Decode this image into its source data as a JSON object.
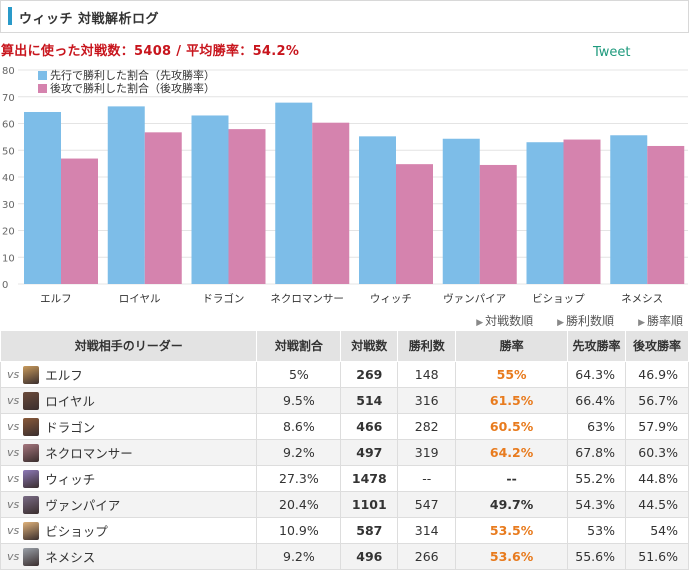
{
  "header": {
    "title": "ウィッチ 対戦解析ログ"
  },
  "summary": {
    "text": "算出に使った対戦数：5408 / 平均勝率：54.2%"
  },
  "tweet_label": "Tweet",
  "chart_data": {
    "type": "bar",
    "categories": [
      "エルフ",
      "ロイヤル",
      "ドラゴン",
      "ネクロマンサー",
      "ウィッチ",
      "ヴァンパイア",
      "ビショップ",
      "ネメシス"
    ],
    "series": [
      {
        "name": "先行で勝利した割合（先攻勝率）",
        "color": "#7dbde8",
        "values": [
          64.3,
          66.4,
          63,
          67.8,
          55.2,
          54.3,
          53,
          55.6
        ]
      },
      {
        "name": "後攻で勝利した割合（後攻勝率）",
        "color": "#d583ae",
        "values": [
          46.9,
          56.7,
          57.9,
          60.3,
          44.8,
          44.5,
          54,
          51.6
        ]
      }
    ],
    "ylim": [
      0,
      80
    ],
    "yticks": [
      0,
      10,
      20,
      30,
      40,
      50,
      60,
      70,
      80
    ],
    "legend": "top-left",
    "grid": true
  },
  "sort_links": [
    "対戦数順",
    "勝利数順",
    "勝率順"
  ],
  "table": {
    "headers": [
      "対戦相手のリーダー",
      "対戦割合",
      "対戦数",
      "勝利数",
      "勝率",
      "先攻勝率",
      "後攻勝率"
    ],
    "vs_label": "vs",
    "rows": [
      {
        "leader": "エルフ",
        "avatar_color": "#c89a5c",
        "share": "5%",
        "games": "269",
        "wins": "148",
        "winrate": "55%",
        "highlight": true,
        "first": "64.3%",
        "second": "46.9%"
      },
      {
        "leader": "ロイヤル",
        "avatar_color": "#6a4a3a",
        "share": "9.5%",
        "games": "514",
        "wins": "316",
        "winrate": "61.5%",
        "highlight": true,
        "first": "66.4%",
        "second": "56.7%"
      },
      {
        "leader": "ドラゴン",
        "avatar_color": "#8a5a3a",
        "share": "8.6%",
        "games": "466",
        "wins": "282",
        "winrate": "60.5%",
        "highlight": true,
        "first": "63%",
        "second": "57.9%"
      },
      {
        "leader": "ネクロマンサー",
        "avatar_color": "#a5767e",
        "share": "9.2%",
        "games": "497",
        "wins": "319",
        "winrate": "64.2%",
        "highlight": true,
        "first": "67.8%",
        "second": "60.3%"
      },
      {
        "leader": "ウィッチ",
        "avatar_color": "#8e7ab8",
        "share": "27.3%",
        "games": "1478",
        "wins": "--",
        "winrate": "--",
        "highlight": false,
        "first": "55.2%",
        "second": "44.8%"
      },
      {
        "leader": "ヴァンパイア",
        "avatar_color": "#7a6c86",
        "share": "20.4%",
        "games": "1101",
        "wins": "547",
        "winrate": "49.7%",
        "highlight": false,
        "first": "54.3%",
        "second": "44.5%"
      },
      {
        "leader": "ビショップ",
        "avatar_color": "#e0b27a",
        "share": "10.9%",
        "games": "587",
        "wins": "314",
        "winrate": "53.5%",
        "highlight": true,
        "first": "53%",
        "second": "54%"
      },
      {
        "leader": "ネメシス",
        "avatar_color": "#9aa0a8",
        "share": "9.2%",
        "games": "496",
        "wins": "266",
        "winrate": "53.6%",
        "highlight": true,
        "first": "55.6%",
        "second": "51.6%"
      }
    ]
  }
}
